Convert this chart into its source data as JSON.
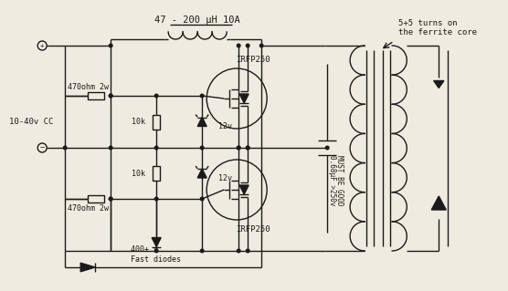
{
  "bg_color": "#f0ebe0",
  "line_color": "#1a1a1a",
  "title": "47 - 200 μH 10A",
  "label_irfp250_top": "IRFP250",
  "label_irfp250_bot": "IRFP250",
  "label_left": "10-40v CC",
  "label_r1": "470ohm 2w",
  "label_r2": "470ohm 2w",
  "label_10k_top": "10k",
  "label_10k_bot": "10k",
  "label_12v_top": "12v",
  "label_12v_bot": "12v",
  "label_cap_line1": "0.68μF >250v",
  "label_cap_line2": "MUST BE GOOD",
  "label_diode": "400+ v\nFast diodes",
  "label_ferrite_line1": "5+5 turns on",
  "label_ferrite_line2": "the ferrite core"
}
